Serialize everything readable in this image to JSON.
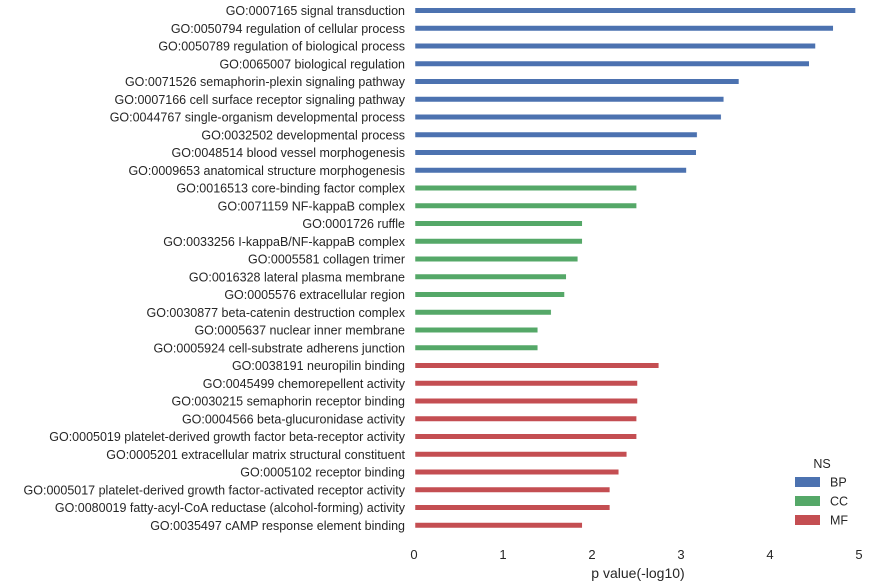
{
  "chart_data": {
    "type": "bar",
    "orientation": "horizontal",
    "categories": [
      "GO:0007165 signal transduction",
      "GO:0050794 regulation of cellular process",
      "GO:0050789 regulation of biological process",
      "GO:0065007 biological regulation",
      "GO:0071526 semaphorin-plexin signaling pathway",
      "GO:0007166 cell surface receptor signaling pathway",
      "GO:0044767 single-organism developmental process",
      "GO:0032502 developmental process",
      "GO:0048514 blood vessel morphogenesis",
      "GO:0009653 anatomical structure morphogenesis",
      "GO:0016513 core-binding factor complex",
      "GO:0071159 NF-kappaB complex",
      "GO:0001726 ruffle",
      "GO:0033256 I-kappaB/NF-kappaB complex",
      "GO:0005581 collagen trimer",
      "GO:0016328 lateral plasma membrane",
      "GO:0005576 extracellular region",
      "GO:0030877 beta-catenin destruction complex",
      "GO:0005637 nuclear inner membrane",
      "GO:0005924 cell-substrate adherens junction",
      "GO:0038191 neuropilin binding",
      "GO:0045499 chemorepellent activity",
      "GO:0030215 semaphorin receptor binding",
      "GO:0004566 beta-glucuronidase activity",
      "GO:0005019 platelet-derived growth factor beta-receptor activity",
      "GO:0005201 extracellular matrix structural constituent",
      "GO:0005102 receptor binding",
      "GO:0005017 platelet-derived growth factor-activated receptor activity",
      "GO:0080019 fatty-acyl-CoA reductase (alcohol-forming) activity",
      "GO:0035497 cAMP response element binding"
    ],
    "values": [
      4.95,
      4.7,
      4.5,
      4.43,
      3.64,
      3.47,
      3.44,
      3.17,
      3.16,
      3.05,
      2.49,
      2.49,
      1.88,
      1.88,
      1.83,
      1.7,
      1.68,
      1.53,
      1.38,
      1.38,
      2.74,
      2.5,
      2.5,
      2.49,
      2.49,
      2.38,
      2.29,
      2.19,
      2.19,
      1.88
    ],
    "groups": [
      "BP",
      "BP",
      "BP",
      "BP",
      "BP",
      "BP",
      "BP",
      "BP",
      "BP",
      "BP",
      "CC",
      "CC",
      "CC",
      "CC",
      "CC",
      "CC",
      "CC",
      "CC",
      "CC",
      "CC",
      "MF",
      "MF",
      "MF",
      "MF",
      "MF",
      "MF",
      "MF",
      "MF",
      "MF",
      "MF"
    ],
    "xlabel": "p value(-log10)",
    "ylabel": "",
    "xlim": [
      0,
      5
    ],
    "xticks": [
      "0",
      "1",
      "2",
      "3",
      "4",
      "5"
    ],
    "grid": false,
    "legend": {
      "title": "NS",
      "placement": "bottom-right",
      "entries": [
        {
          "name": "BP",
          "color": "#4c72b0"
        },
        {
          "name": "CC",
          "color": "#55a868"
        },
        {
          "name": "MF",
          "color": "#c44e52"
        }
      ]
    }
  }
}
